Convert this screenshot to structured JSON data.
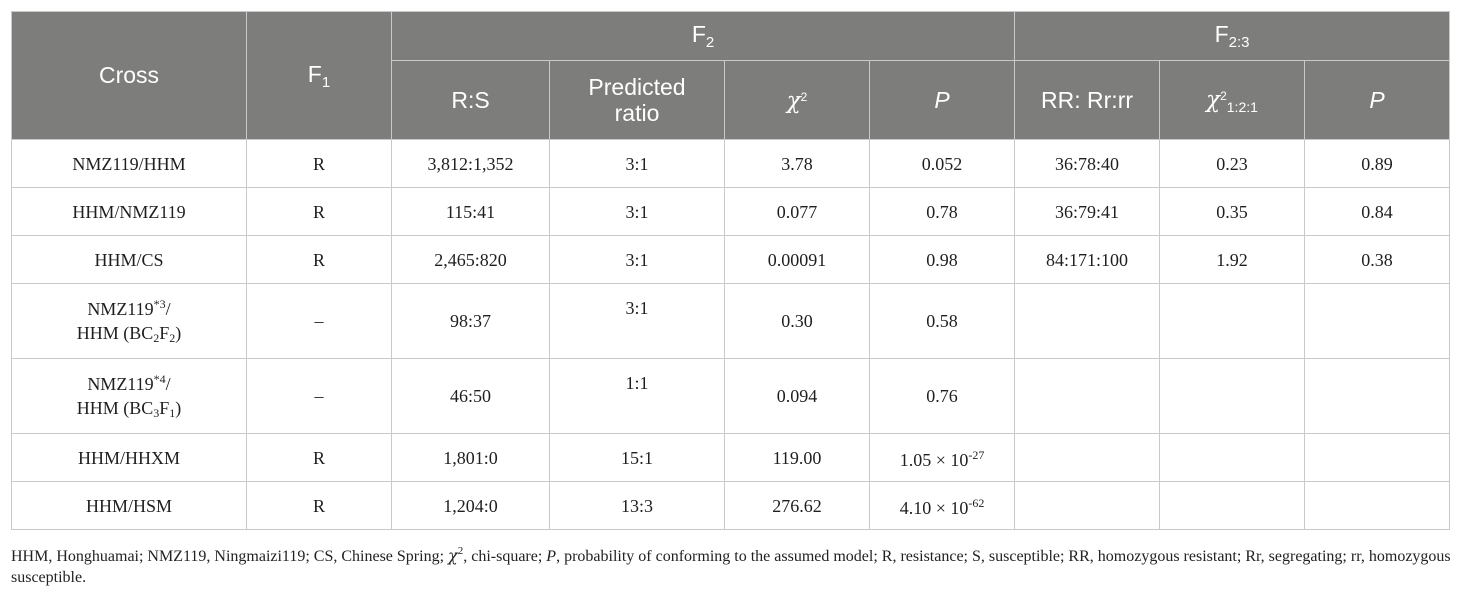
{
  "header": {
    "cross": "Cross",
    "f1_base": "F",
    "f1_sub": "1",
    "f2_base": "F",
    "f2_sub": "2",
    "f23_base": "F",
    "f23_sub": "2:3",
    "rs": "R:S",
    "predicted_line1": "Predicted",
    "predicted_line2": "ratio",
    "chi": "χ",
    "chi_sup": "2",
    "p": "P",
    "rr": "RR: Rr:rr",
    "chi2": "χ",
    "chi2_sup": "2",
    "chi2_sub": "1:2:1",
    "p2": "P"
  },
  "rows": [
    {
      "cross": "NMZ119/HHM",
      "f1": "R",
      "rs": "3,812:1,352",
      "ratio": "3:1",
      "chi": "3.78",
      "p": "0.052",
      "rr": "36:78:40",
      "chi121": "0.23",
      "p2": "0.89"
    },
    {
      "cross": "HHM/NMZ119",
      "f1": "R",
      "rs": "115:41",
      "ratio": "3:1",
      "chi": "0.077",
      "p": "0.78",
      "rr": "36:79:41",
      "chi121": "0.35",
      "p2": "0.84"
    },
    {
      "cross": "HHM/CS",
      "f1": "R",
      "rs": "2,465:820",
      "ratio": "3:1",
      "chi": "0.00091",
      "p": "0.98",
      "rr": "84:171:100",
      "chi121": "1.92",
      "p2": "0.38"
    }
  ],
  "bc_rows": [
    {
      "cross_a": "NMZ119",
      "cross_sup": "*3",
      "cross_b": "/",
      "cross_c": "HHM (BC",
      "bc1": "2",
      "f_letter": "F",
      "bc2": "2",
      "close": ")",
      "f1": "–",
      "rs": "98:37",
      "ratio": "3:1",
      "chi": "0.30",
      "p": "0.58"
    },
    {
      "cross_a": "NMZ119",
      "cross_sup": "*4",
      "cross_b": "/",
      "cross_c": "HHM (BC",
      "bc1": "3",
      "f_letter": "F",
      "bc2": "1",
      "close": ")",
      "f1": "–",
      "rs": "46:50",
      "ratio": "1:1",
      "chi": "0.094",
      "p": "0.76"
    }
  ],
  "exp_rows": [
    {
      "cross": "HHM/HHXM",
      "f1": "R",
      "rs": "1,801:0",
      "ratio": "15:1",
      "chi": "119.00",
      "p_base": "1.05 × 10",
      "p_exp": "-27"
    },
    {
      "cross": "HHM/HSM",
      "f1": "R",
      "rs": "1,204:0",
      "ratio": "13:3",
      "chi": "276.62",
      "p_base": "4.10 × 10",
      "p_exp": "-62"
    }
  ],
  "footnote": {
    "part1": "HHM, Honghuamai; NMZ119, Ningmaizi119; CS, Chinese Spring; ",
    "chi": "χ",
    "chi_sup": "2",
    "part2": ", chi-square; ",
    "p": "P",
    "part3": ", probability of conforming to the assumed model; R, resistance; S, susceptible; RR, homozygous resistant; Rr, segregating; rr, homozygous susceptible."
  }
}
